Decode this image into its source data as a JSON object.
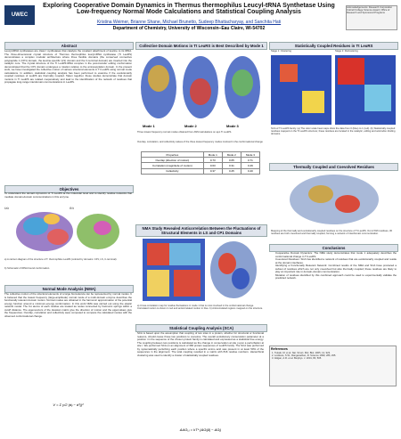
{
  "header": {
    "title": "Exploring Cooperative Domain Dynamics in Thermus thermophilus Leucyl-tRNA Synthetase Using Low-frequency Normal Mode Calculations and Statistical Coupling Analysis",
    "authors": "Kristina Weimer, Brianne Shane, Michael Brunetto, Sudeep Bhattacharyay, and Sanchita Hati",
    "affiliation": "Department of Chemistry, University of Wisconsin–Eau Claire, WI-54702",
    "logo": "UWEC",
    "note": "Acknowledgements: Research Corporation Cottrell College Science Award; Office of Research and Sponsored Programs"
  },
  "abstract": {
    "heading": "Abstract",
    "text": "Leucyl-tRNA synthetases are class I synthetases that catalyze the covalent attachment of leucine to its tRNA. The three-dimensional crystal structure of Thermus thermophilus leucyl-tRNA synthetase (Tt LeuRS) demonstrates a complex modular architecture where three flexible domains (the conserved connective polypeptide 1 (CP1) domain, the leucine-specific (LS) domain and the C-terminal domain) are inserted into the catalytic core. The crystal structure of the Tt LeuRS:tRNA complex in the post-transfer editing conformation demonstrated that the CP1 domain undergoes a rotation relative to the aminoacylation domain. In the present work, we have investigated the collective motion of various structural elements in Tt LeuRS using normal mode calculations. In addition, statistical coupling analysis has been performed to examine if the evolutionarily coupled residues of LeuRS are thermally coupled. Taken together, these studies demonstrate that domain motions in Tt LeuRS are related cooperatively and lead to the identification of the network of residues that propagate long-range interdomain communications in LeuRS."
  },
  "objectives": {
    "heading": "Objectives",
    "text": "To understand the domain dynamics of Tt LeuRS at the molecular level and to identify residue networks that mediate domain-domain communications in this enzyme.",
    "caption_a": "a) A cartoon diagram of the structure of T. thermophilus LeuRS (colored by domains: CP1, LS, C-terminal).",
    "caption_b": "b) Schematic of tRNA bound conformation.",
    "label_a": "(a)",
    "label_b": "(b)"
  },
  "nma": {
    "heading": "Normal Mode Analysis (NMA)",
    "text": "The collective motion of the structural elements of a large biomolecule can be represented by normal modes. It is believed that the lowest frequency (large-amplitude) normal mode of a multi-domain enzyme describes the functionally relevant domain motion. Normal modes are obtained in the harmonic approximation of the potential energy function around a minimum-energy conformation. In this work NMA was carried out using the elastic network model. The Cα atoms of each residue are treated as nodes connected by harmonic springs within a cutoff distance. The eigenvectors of the Hessian matrix give the direction of motion and the eigenvalues give the frequencies. Overlap, correlation and collectivity were computed to compare the calculated modes with the observed conformational change.",
    "equation": "V = Σ γ/2 (dᵢⱼ − d⁰ᵢⱼ)²"
  },
  "modes": {
    "heading": "Collective Domain Motions in Tt LeuRS is Best Described by Mode 1",
    "labels": [
      "Mode 1",
      "Mode 2",
      "Mode 3"
    ],
    "caption": "Three lowest frequency normal modes obtained from ANM calculations on apo Tt LeuRS.",
    "table_caption": "Overlap, correlation, and collectivity values of the three lowest frequency modes involved in the conformational change",
    "table": {
      "header": [
        "Properties",
        "Mode 1",
        "Mode 2",
        "Mode 3"
      ],
      "rows": [
        [
          "Overlap (direction of motion)",
          "0.73",
          "0.65",
          "0.71"
        ],
        [
          "Correlation (magnitude of motion)",
          "0.63",
          "0.31",
          "0.49"
        ],
        [
          "Collectivity",
          "0.37",
          "0.25",
          "0.40"
        ]
      ]
    }
  },
  "nma_study": {
    "heading": "NMA Study Revealed Anticorrelation Between the Fluctuations of Structural Elements in LS and CP1 Domains",
    "caption": "a) Cross-correlation map for residue fluctuations in mode 1 that is most involved in the conformational change. Correlated motion is shown in red and anticorrelated motion in blue. b) Anticorrelated regions mapped on the structure."
  },
  "sca": {
    "heading": "Statistical Coupling Analysis (SCA)",
    "text": "SCA is based upon the assumption that coupling of two sites in a protein, whether for structural or functional reasons, should cause those two positions to coevolve. The overall evolutionary conservation parameter at a position i in the sequence of the chosen protein family is calculated and expressed as a statistical free energy. The coupling between two positions is calculated as the change in conservation at site j upon a perturbation at site i. We performed SCA on an alignment of 366 protein sequences of LeuRS family. The SCA was performed by systematically perturbing each position where a specific amino acid was present in at least 50% of the sequences in the alignment. The total coupling resulted in a matrix with 816 residue numbers. Hierarchical clustering was used to identify a cluster of statistically coupled residues.",
    "equation": "ΔΔGᵢ,ⱼ = kT* (ΔGᵢ|δj − ΔGᵢ)"
  },
  "sca_results": {
    "heading": "Statistically Coupled Residues in Tt LeuRS",
    "labels": [
      "Stage 1: Clustering",
      "Stage 2: Reclustering"
    ],
    "caption": "SCA of Tt LeuRS family. (a) The color scale heat maps show the data from 0 (blue) to 1 (red). (b) Statistically coupled residues mapped on the Tt LeuRS structure; these residues are located in the catalytic, editing and anticodon-binding domains."
  },
  "thermal": {
    "heading": "Thermally Coupled and Coevolved Residues",
    "caption": "Mapping of the thermally and evolutionarily coupled residues on the structure of Tt LeuRS. Out of 816 residues, 30 residues are both coevolved and thermally coupled, forming a network of interdomain communication."
  },
  "conclusions": {
    "heading": "Conclusions",
    "items": [
      "Cooperative Domain Dynamics: The NMA study demonstrates that mode 1 adequately describes the conformational change in Tt LeuRS.",
      "Coevolved Residues: SCA has identified a network of residues that are evolutionarily coupled and reside at the domain interfaces.",
      "Identifying a Functionally Relevant Network: Combined results of the NMA and SCA have produced a subset of residues which are not only coevolved but also thermally coupled; these residues are likely to play an important role in domain-domain communication.",
      "Mutation of residues identified by this combined approach could be used to experimentally validate the predicted network."
    ]
  },
  "references": {
    "heading": "References",
    "items": [
      "1. Tukalo, M. et al. Nat. Struct. Mol. Biol. 2005, 12, 923.",
      "2. Lockless, S.W.; Ranganathan, R. Science 1999, 286, 295.",
      "3. Atilgan, A.R. et al. Biophys. J. 2001, 80, 505."
    ]
  }
}
